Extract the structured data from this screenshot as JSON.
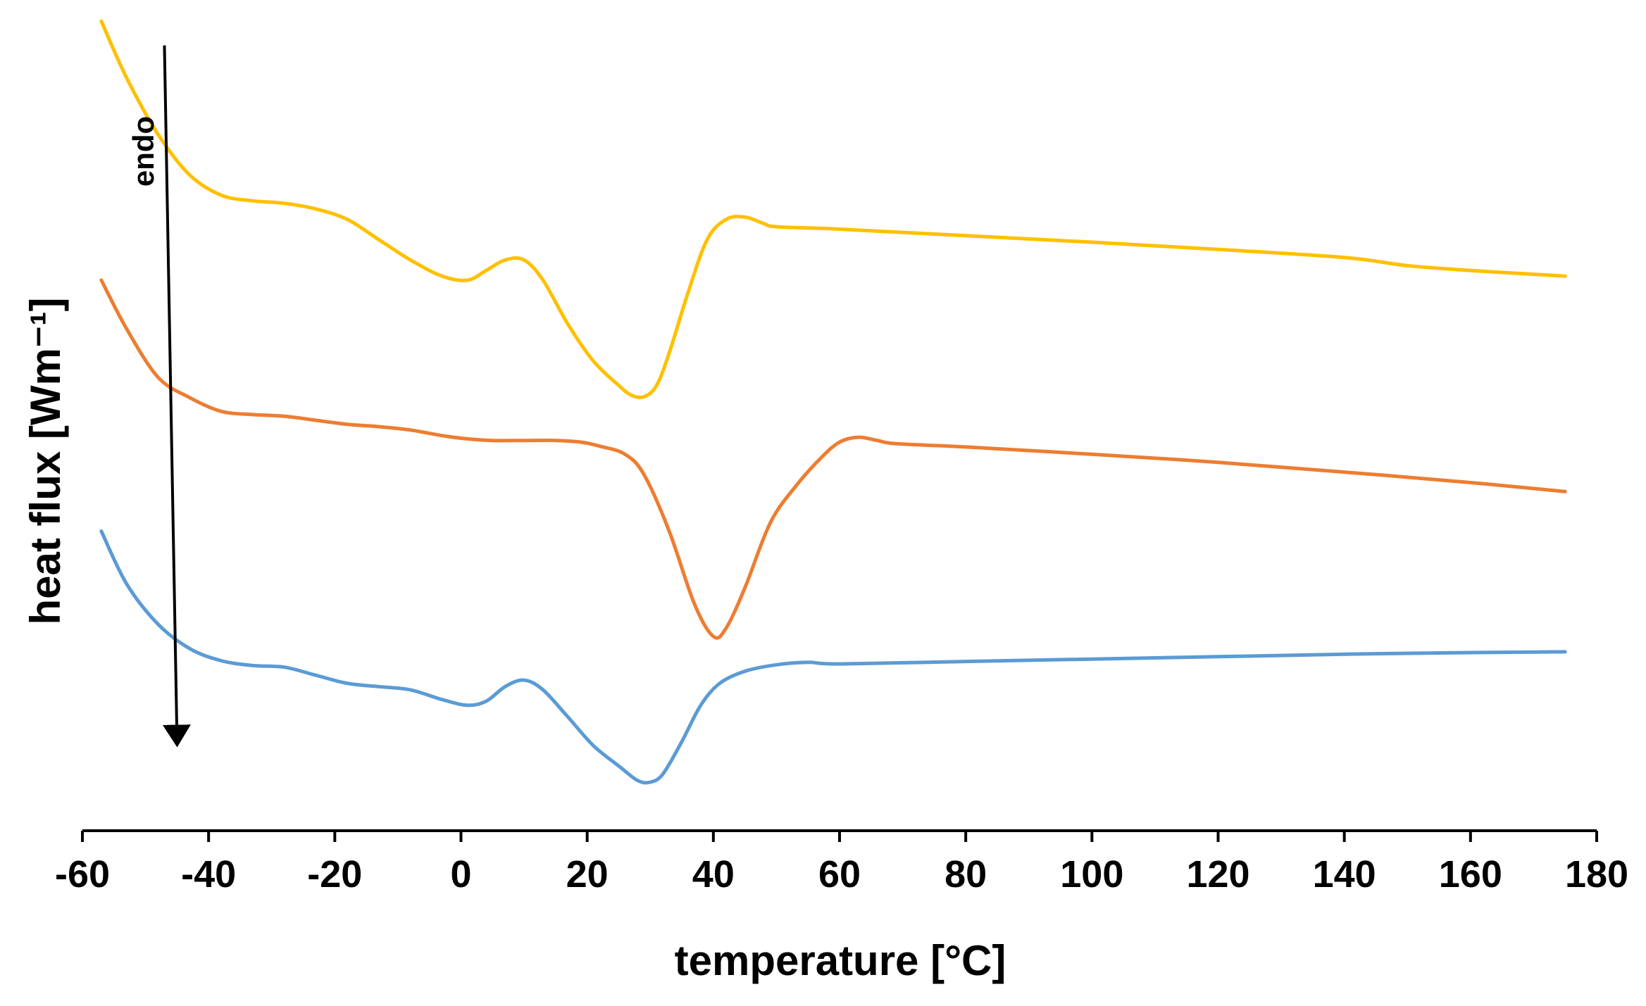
{
  "chart_data": {
    "type": "line",
    "title": "",
    "xlabel": "temperature [°C]",
    "ylabel": "heat flux [Wm⁻¹]",
    "xlim": [
      -60,
      180
    ],
    "ylim": [
      0,
      100
    ],
    "x_ticks": [
      -60,
      -40,
      -20,
      0,
      20,
      40,
      60,
      80,
      100,
      120,
      140,
      160,
      180
    ],
    "y_ticks_shown": false,
    "grid": false,
    "legend": "none",
    "annotation": {
      "text": "endo",
      "arrow_from": [
        -47,
        97
      ],
      "arrow_to": [
        -45,
        11
      ]
    },
    "series": [
      {
        "name": "yellow",
        "color": "#FFC000",
        "points": [
          [
            -57,
            100
          ],
          [
            -53,
            93
          ],
          [
            -48,
            86
          ],
          [
            -43,
            81
          ],
          [
            -38,
            78.5
          ],
          [
            -33,
            77.8
          ],
          [
            -28,
            77.5
          ],
          [
            -23,
            76.8
          ],
          [
            -18,
            75.5
          ],
          [
            -13,
            73
          ],
          [
            -8,
            70.5
          ],
          [
            -3,
            68.5
          ],
          [
            1,
            68
          ],
          [
            4,
            69.2
          ],
          [
            7,
            70.5
          ],
          [
            10,
            70.5
          ],
          [
            13,
            68
          ],
          [
            17,
            62.5
          ],
          [
            21,
            58
          ],
          [
            25,
            55
          ],
          [
            27,
            53.8
          ],
          [
            29,
            53.6
          ],
          [
            31,
            55
          ],
          [
            33,
            59
          ],
          [
            36,
            66.5
          ],
          [
            39,
            73
          ],
          [
            42,
            75.5
          ],
          [
            45,
            75.8
          ],
          [
            48,
            75
          ],
          [
            50,
            74.6
          ],
          [
            60,
            74.3
          ],
          [
            80,
            73.5
          ],
          [
            100,
            72.7
          ],
          [
            120,
            71.8
          ],
          [
            140,
            70.8
          ],
          [
            150,
            69.8
          ],
          [
            160,
            69.2
          ],
          [
            175,
            68.5
          ]
        ]
      },
      {
        "name": "orange",
        "color": "#ED7D31",
        "points": [
          [
            -57,
            68
          ],
          [
            -53,
            62
          ],
          [
            -48,
            56
          ],
          [
            -43,
            53.5
          ],
          [
            -38,
            51.8
          ],
          [
            -33,
            51.4
          ],
          [
            -28,
            51.2
          ],
          [
            -23,
            50.7
          ],
          [
            -18,
            50.2
          ],
          [
            -13,
            49.9
          ],
          [
            -8,
            49.5
          ],
          [
            -3,
            48.8
          ],
          [
            1,
            48.4
          ],
          [
            5,
            48.2
          ],
          [
            10,
            48.2
          ],
          [
            15,
            48.2
          ],
          [
            19,
            48
          ],
          [
            22,
            47.5
          ],
          [
            26,
            46.5
          ],
          [
            29,
            44
          ],
          [
            33,
            37
          ],
          [
            37,
            28
          ],
          [
            40,
            24
          ],
          [
            42,
            25
          ],
          [
            45,
            30
          ],
          [
            49,
            38
          ],
          [
            53,
            42.5
          ],
          [
            57,
            46
          ],
          [
            60,
            48
          ],
          [
            63,
            48.6
          ],
          [
            66,
            48.2
          ],
          [
            69,
            47.8
          ],
          [
            80,
            47.4
          ],
          [
            100,
            46.5
          ],
          [
            120,
            45.5
          ],
          [
            140,
            44.3
          ],
          [
            160,
            43
          ],
          [
            175,
            41.9
          ]
        ]
      },
      {
        "name": "blue",
        "color": "#5B9BD5",
        "points": [
          [
            -57,
            37
          ],
          [
            -53,
            30.5
          ],
          [
            -48,
            25.5
          ],
          [
            -43,
            22.5
          ],
          [
            -38,
            21
          ],
          [
            -33,
            20.4
          ],
          [
            -28,
            20.2
          ],
          [
            -23,
            19.2
          ],
          [
            -18,
            18.2
          ],
          [
            -13,
            17.8
          ],
          [
            -8,
            17.4
          ],
          [
            -3,
            16.2
          ],
          [
            1,
            15.5
          ],
          [
            4,
            16
          ],
          [
            7,
            17.8
          ],
          [
            10,
            18.6
          ],
          [
            13,
            17.4
          ],
          [
            17,
            14
          ],
          [
            21,
            10.5
          ],
          [
            25,
            8
          ],
          [
            28,
            6.2
          ],
          [
            30,
            6
          ],
          [
            32,
            7
          ],
          [
            35,
            11
          ],
          [
            38,
            15.5
          ],
          [
            41,
            18.2
          ],
          [
            45,
            19.7
          ],
          [
            50,
            20.5
          ],
          [
            55,
            20.8
          ],
          [
            60,
            20.6
          ],
          [
            80,
            20.9
          ],
          [
            100,
            21.2
          ],
          [
            120,
            21.5
          ],
          [
            140,
            21.8
          ],
          [
            160,
            22
          ],
          [
            175,
            22.1
          ]
        ]
      }
    ]
  }
}
